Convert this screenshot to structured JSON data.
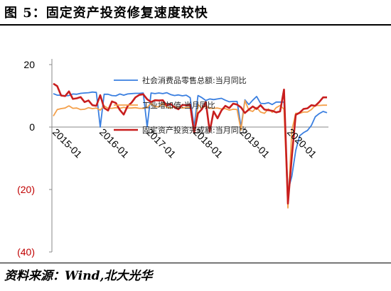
{
  "header": {
    "title": "图 5：固定资产投资修复速度较快"
  },
  "footer": {
    "source": "资料来源：Wind,北大光华"
  },
  "chart_data": {
    "type": "line",
    "x_labels": [
      "2015-01",
      "2016-01",
      "2017-01",
      "2018-01",
      "2019-01",
      "2020-01"
    ],
    "y_ticks": [
      "20",
      "0",
      "(20)",
      "(40)"
    ],
    "y_tick_values": [
      20,
      0,
      -20,
      -40
    ],
    "ylim": [
      -40,
      20
    ],
    "y_tick_colors": [
      "#000000",
      "#000000",
      "#c00000",
      "#c00000"
    ],
    "grid": false,
    "legend_placement": "top inside plot",
    "series": [
      {
        "name": "社会消费品零售总额:当月同比",
        "color": "#3a7fe0",
        "values": [
          10.7,
          10.2,
          10.2,
          10.0,
          10.1,
          10.6,
          10.5,
          10.8,
          10.9,
          11.0,
          11.2,
          11.1,
          0,
          10.5,
          10.5,
          10.1,
          10.0,
          10.6,
          10.2,
          10.6,
          10.7,
          10.8,
          10.8,
          10.9,
          0,
          10.9,
          10.7,
          10.9,
          10.7,
          11.0,
          10.4,
          10.1,
          10.3,
          10.0,
          10.2,
          9.4,
          0,
          10.1,
          9.4,
          8.5,
          9.0,
          8.8,
          9.0,
          9.2,
          8.6,
          8.1,
          8.2,
          8.2,
          0,
          8.7,
          7.2,
          8.6,
          9.8,
          7.6,
          7.5,
          7.8,
          7.2,
          8.0,
          8.0,
          8.0,
          -20.5,
          -15.8,
          -7.5,
          -2.8,
          -1.8,
          -1.1,
          0.5,
          3.3,
          4.3,
          5.0,
          4.6
        ]
      },
      {
        "name": "工业增加值:当月同比",
        "color": "#f4a04a",
        "values": [
          3.5,
          5.6,
          5.9,
          6.1,
          6.8,
          6.0,
          6.1,
          5.6,
          5.7,
          6.2,
          5.9,
          6.1,
          5.4,
          6.8,
          6.0,
          6.0,
          6.2,
          6.0,
          6.3,
          6.1,
          6.1,
          6.2,
          6.0,
          6.0,
          6.3,
          7.6,
          6.5,
          6.5,
          7.6,
          6.4,
          6.0,
          6.6,
          6.2,
          6.1,
          6.2,
          6.3,
          -2.0,
          7.2,
          6.0,
          6.8,
          6.0,
          6.0,
          6.1,
          5.8,
          5.9,
          5.4,
          5.7,
          5.6,
          -1.0,
          8.5,
          5.4,
          5.0,
          6.3,
          4.8,
          4.4,
          5.8,
          4.7,
          6.2,
          6.9,
          5.7,
          -25.9,
          -1.1,
          4.4,
          4.4,
          4.8,
          4.8,
          5.6,
          6.9,
          6.9,
          7.0,
          7.0
        ]
      },
      {
        "name": "固定资产投资完成额:当月同比",
        "color": "#c81e1e",
        "values": [
          13.9,
          13.1,
          10.1,
          9.9,
          11.4,
          9.0,
          9.2,
          9.6,
          8.0,
          8.5,
          7.0,
          6.8,
          10.2,
          6.1,
          5.3,
          8.2,
          7.7,
          5.5,
          4.0,
          6.7,
          7.8,
          9.5,
          10.3,
          10.5,
          8.9,
          8.0,
          8.6,
          8.5,
          8.6,
          6.9,
          7.4,
          6.3,
          5.7,
          7.1,
          7.0,
          7.2,
          -1.8,
          4.4,
          5.7,
          8.0,
          -1.4,
          5.0,
          2.8,
          5.3,
          6.8,
          6.1,
          7.5,
          7.2,
          6.3,
          4.5,
          5.6,
          6.6,
          5.8,
          7.0,
          5.6,
          5.4,
          5.2,
          4.7,
          5.0,
          12.0,
          -24.5,
          -9.5,
          3.9,
          4.6,
          5.8,
          6.0,
          7.0,
          6.8,
          8.0,
          9.5,
          9.5
        ]
      }
    ]
  }
}
